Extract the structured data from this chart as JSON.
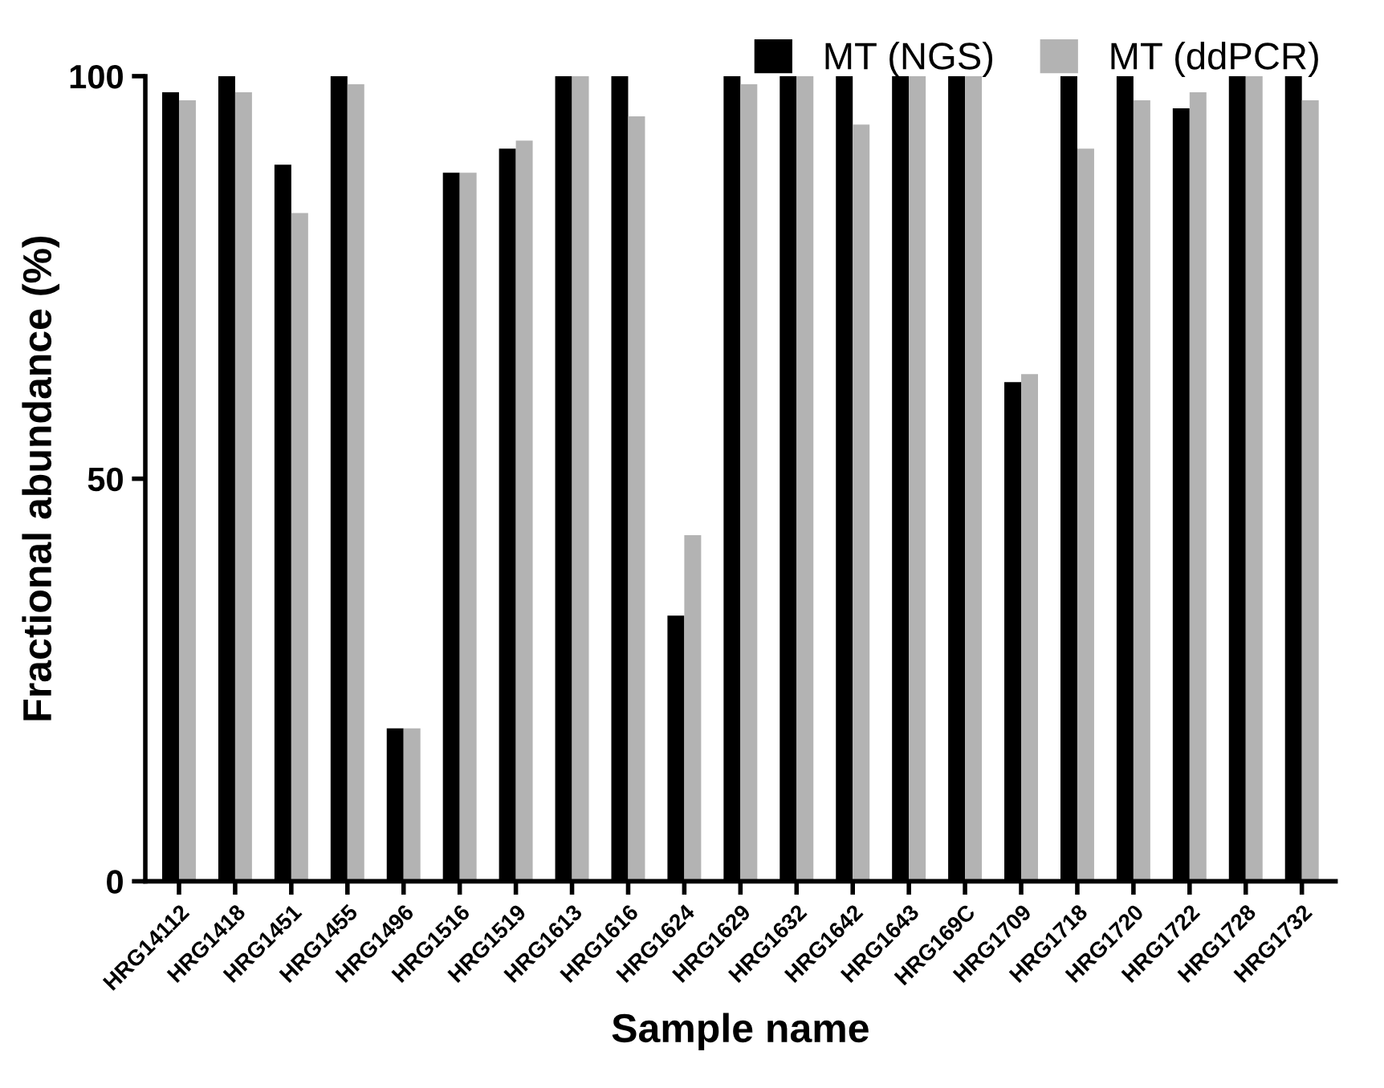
{
  "chart_data": {
    "type": "bar",
    "xlabel": "Sample name",
    "ylabel": "Fractional abundance (%)",
    "categories": [
      "HRG14112",
      "HRG1418",
      "HRG1451",
      "HRG1455",
      "HRG1496",
      "HRG1516",
      "HRG1519",
      "HRG1613",
      "HRG1616",
      "HRG1624",
      "HRG1629",
      "HRG1632",
      "HRG1642",
      "HRG1643",
      "HRG169C",
      "HRG1709",
      "HRG1718",
      "HRG1720",
      "HRG1722",
      "HRG1728",
      "HRG1732"
    ],
    "series": [
      {
        "name": "MT (NGS)",
        "color": "#000000",
        "values": [
          98,
          100,
          89,
          100,
          19,
          88,
          91,
          100,
          100,
          33,
          100,
          100,
          100,
          100,
          100,
          62,
          100,
          100,
          96,
          100,
          100
        ]
      },
      {
        "name": "MT (ddPCR)",
        "color": "#b3b3b3",
        "values": [
          97,
          98,
          83,
          99,
          19,
          88,
          92,
          100,
          95,
          43,
          99,
          100,
          94,
          100,
          100,
          63,
          91,
          97,
          98,
          100,
          97
        ]
      }
    ],
    "ylim": [
      0,
      100
    ],
    "yticks": [
      0,
      50,
      100
    ],
    "grid": false,
    "legend": "top right"
  }
}
